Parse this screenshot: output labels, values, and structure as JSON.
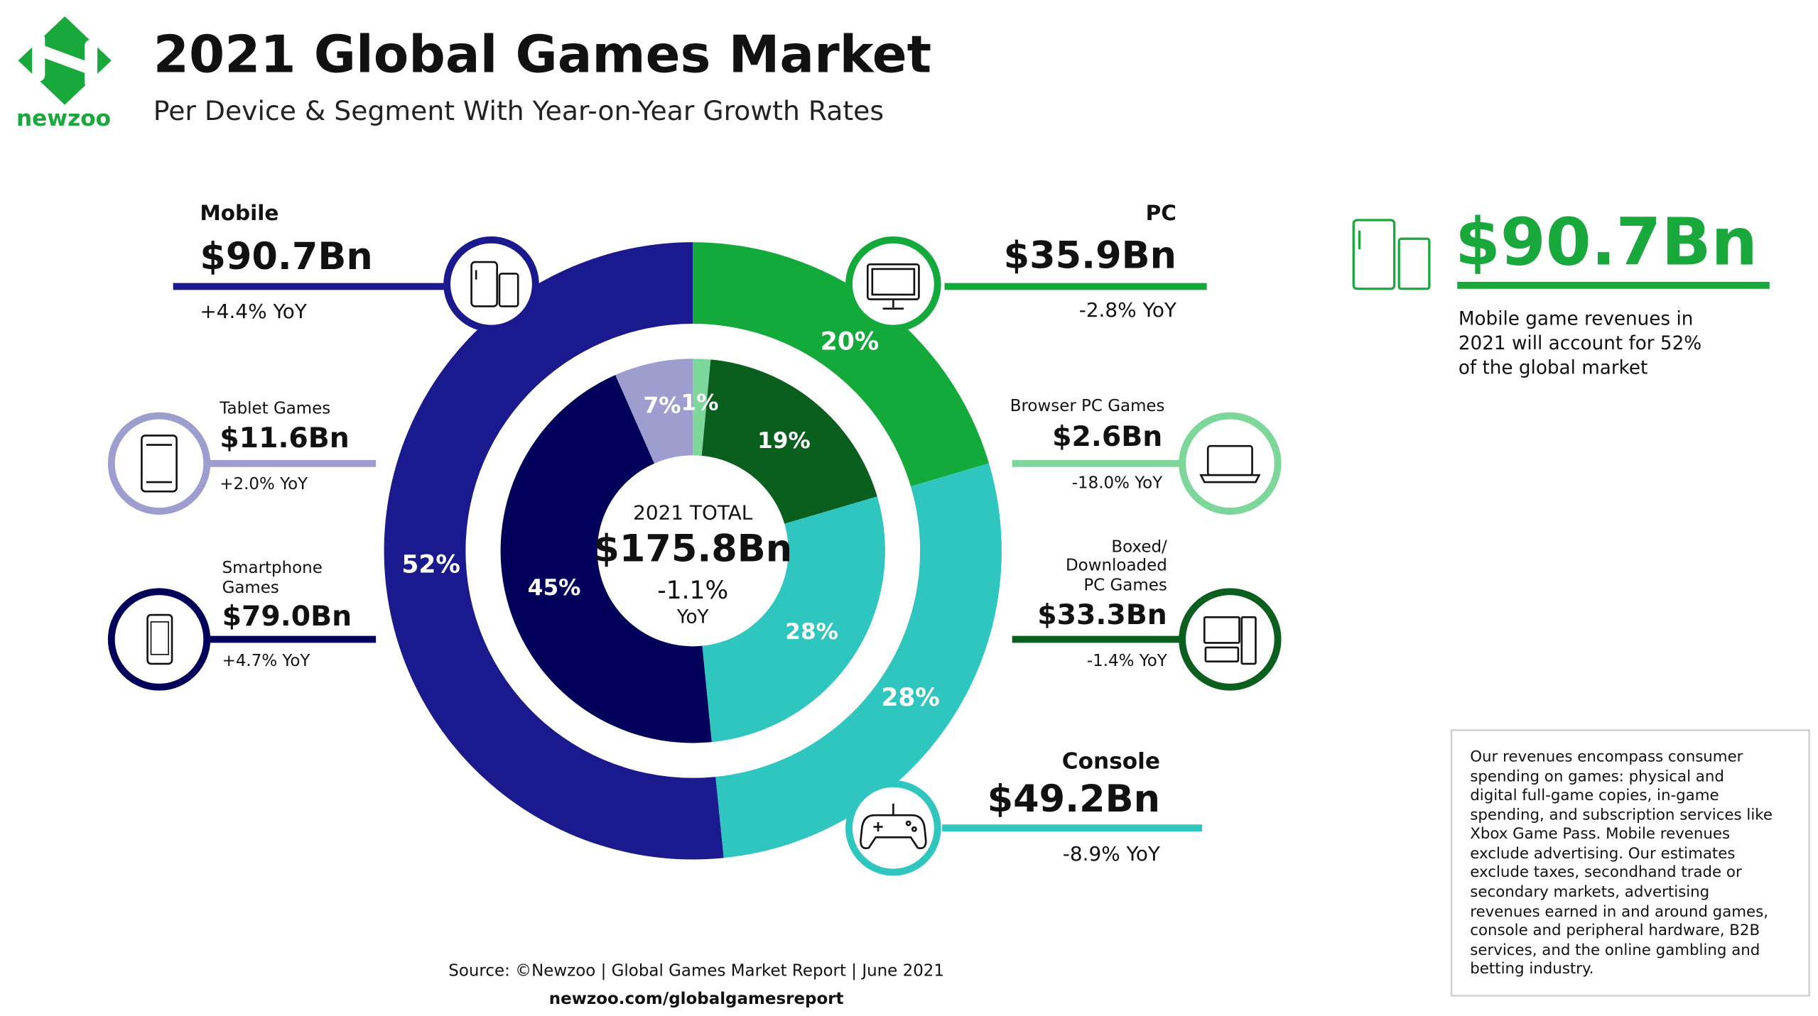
{
  "brand": {
    "name": "newzoo",
    "color": "#18A83B"
  },
  "header": {
    "title": "2021 Global Games Market",
    "subtitle": "Per Device & Segment With Year-on-Year Growth Rates"
  },
  "chart_data": {
    "type": "donut",
    "title": "2021 Global Games Market",
    "subtitle": "Per Device & Segment With Year-on-Year Growth Rates",
    "center": {
      "line1": "2021 TOTAL",
      "value": "$175.8Bn",
      "growth": "-1.1%",
      "unit": "YoY"
    },
    "outer_ring": [
      {
        "name": "PC",
        "value": 35.9,
        "value_label": "$35.9Bn",
        "share": 20,
        "share_label": "20%",
        "yoy": "-2.8% YoY",
        "color": "#14AA3B",
        "icon": "desktop-monitor-icon"
      },
      {
        "name": "Console",
        "value": 49.2,
        "value_label": "$49.2Bn",
        "share": 28,
        "share_label": "28%",
        "yoy": "-8.9% YoY",
        "color": "#2EC6BE",
        "icon": "gamepad-icon"
      },
      {
        "name": "Mobile",
        "value": 90.7,
        "value_label": "$90.7Bn",
        "share": 52,
        "share_label": "52%",
        "yoy": "+4.4% YoY",
        "color": "#1A1A8E",
        "icon": "mobile-devices-icon"
      }
    ],
    "inner_ring": [
      {
        "name": "Browser PC Games",
        "value": 2.6,
        "value_label": "$2.6Bn",
        "share": 1,
        "share_label": "1%",
        "yoy": "-18.0% YoY",
        "color": "#7ED79A",
        "icon": "laptop-icon"
      },
      {
        "name": "Boxed/ Downloaded PC Games",
        "name_lines": [
          "Boxed/",
          "Downloaded",
          "PC Games"
        ],
        "value": 33.3,
        "value_label": "$33.3Bn",
        "share": 19,
        "share_label": "19%",
        "yoy": "-1.4% YoY",
        "color": "#0A5E1E",
        "icon": "desktop-tower-icon"
      },
      {
        "name": "Console",
        "value": 49.2,
        "share": 28,
        "share_label": "28%",
        "color": "#2EC6BE"
      },
      {
        "name": "Smartphone Games",
        "name_lines": [
          "Smartphone",
          "Games"
        ],
        "value": 79.0,
        "value_label": "$79.0Bn",
        "share": 45,
        "share_label": "45%",
        "yoy": "+4.7% YoY",
        "color": "#00005A",
        "icon": "smartphone-icon"
      },
      {
        "name": "Tablet Games",
        "value": 11.6,
        "value_label": "$11.6Bn",
        "share": 7,
        "share_label": "7%",
        "yoy": "+2.0% YoY",
        "color": "#9D9DD0",
        "icon": "tablet-icon"
      }
    ]
  },
  "highlight": {
    "value": "$90.7Bn",
    "text_lines": [
      "Mobile game revenues in",
      "2021 will account for 52%",
      "of the global market"
    ],
    "icon": "mobile-devices-icon"
  },
  "note": {
    "lines": [
      "Our revenues encompass consumer",
      "spending on games: physical and",
      "digital full-game copies, in-game",
      "spending, and subscription services like",
      "Xbox Game Pass. Mobile revenues",
      "exclude advertising. Our estimates",
      "exclude taxes, secondhand trade or",
      "secondary markets, advertising",
      "revenues earned in and around games,",
      "console and peripheral hardware, B2B",
      "services, and the online gambling and",
      "betting industry."
    ]
  },
  "footer": {
    "source": "Source: ©Newzoo | Global Games Market Report | June 2021",
    "url": "newzoo.com/globalgamesreport"
  }
}
